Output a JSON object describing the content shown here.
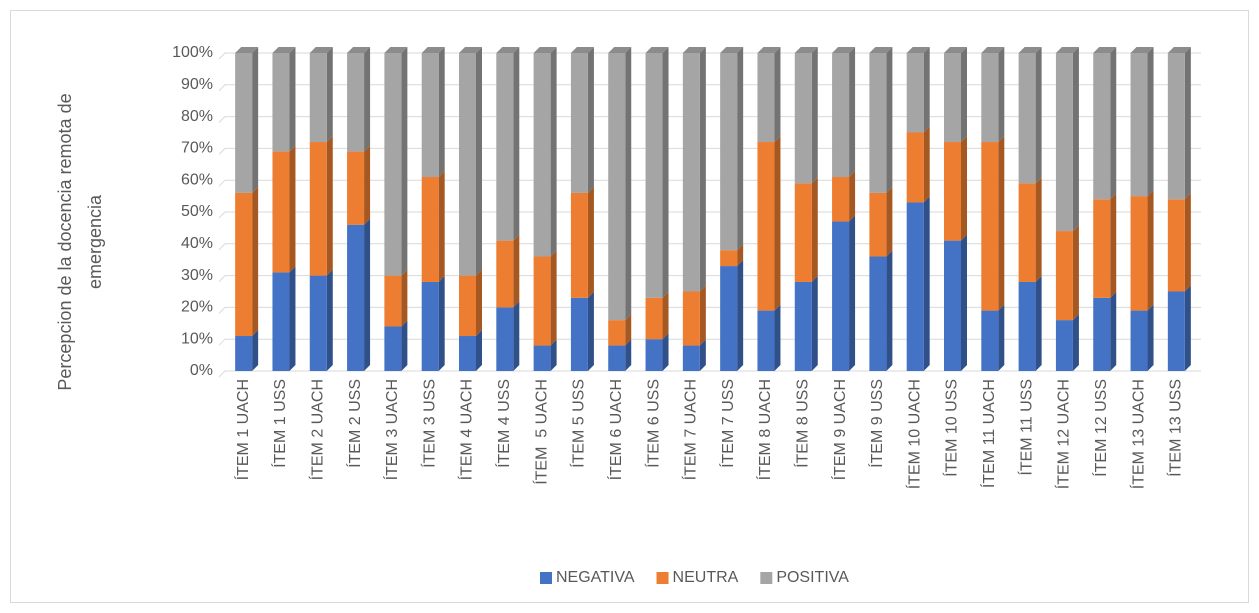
{
  "chart_data": {
    "type": "stacked_bar_100",
    "y_axis_label": "Percepcion de la docencia remota de emergencia",
    "categories": [
      "ÍTEM 1 UACH",
      "ÍTEM 1 USS",
      "ÍTEM 2 UACH",
      "ÍTEM 2 USS",
      "ÍTEM 3 UACH",
      "ÍTEM 3 USS",
      "ÍTEM 4 UACH",
      "ÍTEM 4 USS",
      "ÍTEM  5 UACH",
      "ÍTEM 5 USS",
      "ÍTEM 6 UACH",
      "ÍTEM 6 USS",
      "ÍTEM 7 UACH",
      "ÍTEM 7 USS",
      "ÍTEM 8 UACH",
      "ÍTEM 8 USS",
      "ÍTEM 9 UACH",
      "ÍTEM 9 USS",
      "ÍTEM 10 UACH",
      "ÍTEM 10 USS",
      "ÍTEM 11 UACH",
      "ÍTEM 11 USS",
      "ÍTEM 12 UACH",
      "ÍTEM 12 USS",
      "ÍTEM 13 UACH",
      "ÍTEM 13 USS"
    ],
    "series": [
      {
        "name": "NEGATIVA",
        "color": "#4472c4",
        "values": [
          11,
          31,
          30,
          46,
          14,
          28,
          11,
          20,
          8,
          23,
          8,
          10,
          8,
          33,
          19,
          28,
          47,
          36,
          53,
          41,
          19,
          28,
          16,
          23,
          19,
          25
        ]
      },
      {
        "name": "NEUTRA",
        "color": "#ed7d31",
        "values": [
          45,
          38,
          42,
          23,
          16,
          33,
          19,
          21,
          28,
          33,
          8,
          13,
          17,
          5,
          53,
          31,
          14,
          20,
          22,
          31,
          53,
          31,
          28,
          31,
          36,
          29
        ]
      },
      {
        "name": "POSITIVA",
        "color": "#a5a5a5",
        "values": [
          44,
          31,
          28,
          31,
          70,
          39,
          70,
          59,
          64,
          44,
          84,
          77,
          75,
          62,
          28,
          41,
          39,
          44,
          25,
          28,
          28,
          41,
          56,
          46,
          45,
          46
        ]
      }
    ],
    "ylim": [
      0,
      100
    ],
    "yticks": [
      {
        "value": 0,
        "label": "0%"
      },
      {
        "value": 10,
        "label": "10%"
      },
      {
        "value": 20,
        "label": "20%"
      },
      {
        "value": 30,
        "label": "30%"
      },
      {
        "value": 40,
        "label": "40%"
      },
      {
        "value": 50,
        "label": "50%"
      },
      {
        "value": 60,
        "label": "60%"
      },
      {
        "value": 70,
        "label": "70%"
      },
      {
        "value": 80,
        "label": "80%"
      },
      {
        "value": 90,
        "label": "90%"
      },
      {
        "value": 100,
        "label": "100%"
      }
    ],
    "grid": true,
    "legend": "bottom"
  }
}
